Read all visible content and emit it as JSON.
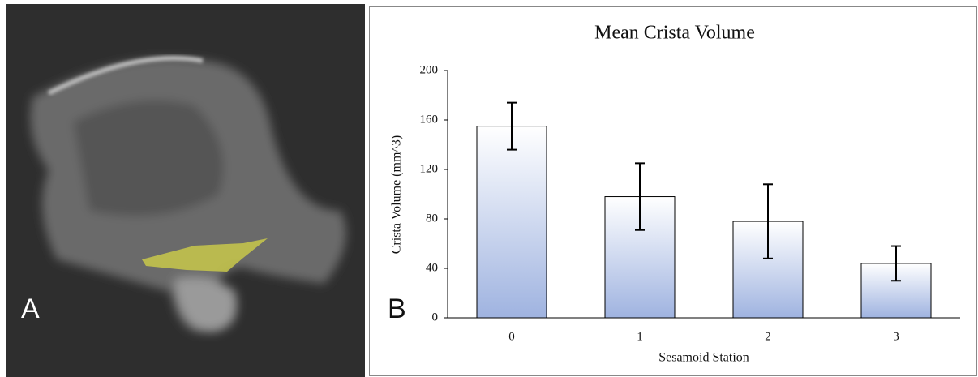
{
  "panel_labels": [
    "A",
    "B"
  ],
  "chart_data": {
    "type": "bar",
    "title": "Mean Crista Volume",
    "x_label": "Sesamoid Station",
    "y_label": "Crista Volume (mm^3)",
    "categories": [
      "0",
      "1",
      "2",
      "3"
    ],
    "values": [
      155,
      98,
      78,
      44
    ],
    "errors": [
      19,
      27,
      30,
      14
    ],
    "color": "#9fb3e0",
    "ylim": [
      0,
      200
    ],
    "yticks": [
      0,
      40,
      80,
      120,
      160,
      200
    ],
    "grid": false
  }
}
